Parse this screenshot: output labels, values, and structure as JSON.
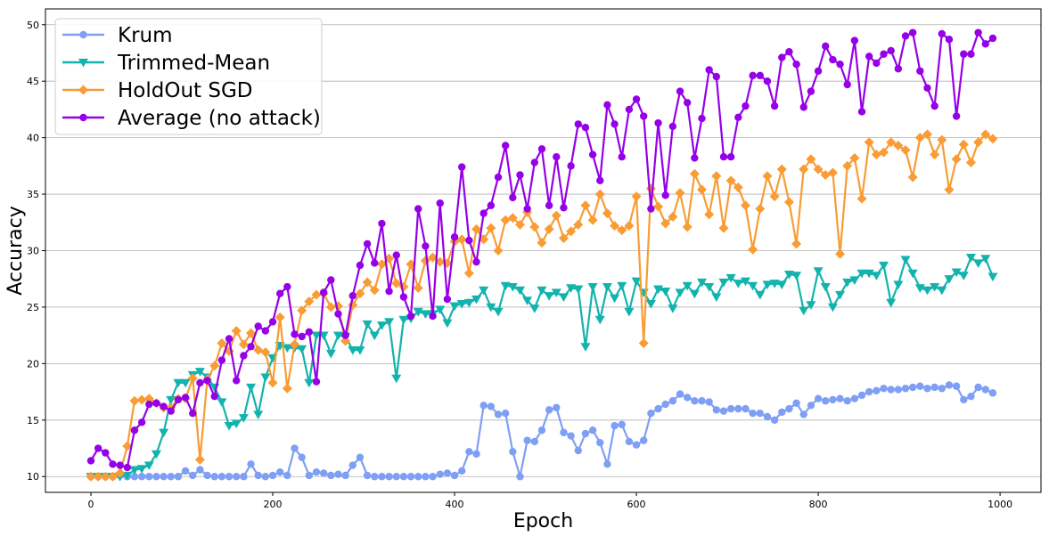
{
  "chart_data": {
    "type": "line",
    "title": "",
    "xlabel": "Epoch",
    "ylabel": "Accuracy",
    "xlim": [
      -50,
      1045
    ],
    "ylim": [
      8.6,
      51.4
    ],
    "xticks": [
      0,
      200,
      400,
      600,
      800,
      1000
    ],
    "yticks": [
      10,
      15,
      20,
      25,
      30,
      35,
      40,
      45,
      50
    ],
    "grid": "horizontal",
    "legend_position": "top-left",
    "x": [
      0,
      8,
      16,
      24,
      32,
      40,
      48,
      56,
      64,
      72,
      80,
      88,
      96,
      104,
      112,
      120,
      128,
      136,
      144,
      152,
      160,
      168,
      176,
      184,
      192,
      200,
      208,
      216,
      224,
      232,
      240,
      248,
      256,
      264,
      272,
      280,
      288,
      296,
      304,
      312,
      320,
      328,
      336,
      344,
      352,
      360,
      368,
      376,
      384,
      392,
      400,
      408,
      416,
      424,
      432,
      440,
      448,
      456,
      464,
      472,
      480,
      488,
      496,
      504,
      512,
      520,
      528,
      536,
      544,
      552,
      560,
      568,
      576,
      584,
      592,
      600,
      608,
      616,
      624,
      632,
      640,
      648,
      656,
      664,
      672,
      680,
      688,
      696,
      704,
      712,
      720,
      728,
      736,
      744,
      752,
      760,
      768,
      776,
      784,
      792,
      800,
      808,
      816,
      824,
      832,
      840,
      848,
      856,
      864,
      872,
      880,
      888,
      896,
      904,
      912,
      920,
      928,
      936,
      944,
      952,
      960,
      968,
      976,
      984,
      992
    ],
    "series": [
      {
        "name": "Krum",
        "color": "#7f9ff5",
        "marker": "circle",
        "values": [
          10.0,
          10.0,
          10.0,
          10.0,
          10.1,
          10.0,
          10.0,
          10.0,
          10.0,
          10.0,
          10.0,
          10.0,
          10.0,
          10.5,
          10.1,
          10.6,
          10.1,
          10.0,
          10.0,
          10.0,
          10.0,
          10.0,
          11.1,
          10.1,
          10.0,
          10.1,
          10.4,
          10.1,
          12.5,
          11.7,
          10.1,
          10.4,
          10.3,
          10.1,
          10.2,
          10.1,
          11.0,
          11.7,
          10.1,
          10.0,
          10.0,
          10.0,
          10.0,
          10.0,
          10.0,
          10.0,
          10.0,
          10.0,
          10.2,
          10.3,
          10.1,
          10.5,
          12.2,
          12.0,
          16.3,
          16.2,
          15.5,
          15.6,
          12.2,
          10.0,
          13.2,
          13.1,
          14.1,
          15.9,
          16.1,
          13.9,
          13.6,
          12.3,
          13.8,
          14.1,
          13.0,
          11.1,
          14.5,
          14.6,
          13.1,
          12.8,
          13.2,
          15.6,
          16.0,
          16.4,
          16.7,
          17.3,
          17.0,
          16.7,
          16.7,
          16.6,
          15.9,
          15.8,
          16.0,
          16.0,
          16.0,
          15.6,
          15.6,
          15.3,
          15.0,
          15.7,
          16.0,
          16.5,
          15.5,
          16.3,
          16.9,
          16.7,
          16.8,
          16.9,
          16.7,
          16.9,
          17.2,
          17.5,
          17.6,
          17.8,
          17.7,
          17.7,
          17.8,
          17.9,
          18.0,
          17.8,
          17.9,
          17.8,
          18.1,
          18.0,
          16.8,
          17.1,
          17.9,
          17.7,
          17.4
        ]
      },
      {
        "name": "Trimmed-Mean",
        "color": "#13b3ad",
        "marker": "triangle-down",
        "values": [
          10.0,
          10.0,
          10.0,
          10.0,
          10.0,
          10.1,
          10.6,
          10.7,
          11.0,
          12.0,
          13.9,
          16.8,
          18.3,
          18.3,
          19.0,
          19.3,
          18.8,
          17.9,
          16.6,
          14.5,
          14.7,
          15.2,
          17.9,
          15.5,
          18.8,
          20.5,
          21.6,
          21.4,
          21.4,
          21.3,
          18.3,
          22.5,
          22.5,
          20.9,
          22.5,
          22.4,
          21.2,
          21.2,
          23.5,
          22.5,
          23.4,
          23.7,
          18.7,
          23.9,
          24.0,
          24.6,
          24.4,
          24.4,
          24.8,
          23.6,
          25.1,
          25.3,
          25.4,
          25.7,
          26.5,
          25.0,
          24.6,
          26.9,
          26.8,
          26.5,
          25.6,
          24.9,
          26.5,
          26.0,
          26.3,
          25.9,
          26.7,
          26.6,
          21.5,
          26.8,
          23.9,
          26.8,
          25.8,
          26.9,
          24.6,
          27.3,
          26.3,
          25.3,
          26.6,
          26.4,
          24.9,
          26.3,
          26.9,
          26.2,
          27.2,
          26.8,
          25.9,
          27.2,
          27.6,
          27.1,
          27.3,
          26.9,
          26.1,
          27.0,
          27.1,
          27.0,
          27.9,
          27.8,
          24.7,
          25.2,
          28.2,
          26.8,
          25.0,
          26.1,
          27.2,
          27.4,
          28.0,
          28.0,
          27.8,
          28.7,
          25.4,
          27.0,
          29.2,
          28.0,
          26.7,
          26.5,
          26.8,
          26.5,
          27.5,
          28.1,
          27.8,
          29.4,
          28.9,
          29.3,
          27.7
        ]
      },
      {
        "name": "HoldOut SGD",
        "color": "#f99c35",
        "marker": "diamond",
        "values": [
          10.0,
          10.0,
          10.0,
          10.0,
          10.3,
          12.7,
          16.7,
          16.8,
          16.9,
          16.5,
          16.1,
          16.1,
          16.9,
          16.9,
          18.7,
          11.5,
          18.6,
          19.8,
          21.8,
          21.1,
          22.9,
          21.7,
          22.7,
          21.2,
          21.0,
          18.3,
          24.1,
          17.8,
          21.7,
          24.7,
          25.5,
          26.1,
          26.2,
          25.0,
          25.1,
          22.0,
          25.2,
          26.2,
          27.2,
          26.5,
          28.8,
          29.3,
          27.1,
          26.8,
          28.8,
          26.7,
          29.1,
          29.4,
          29.0,
          28.9,
          30.8,
          31.0,
          28.0,
          31.9,
          31.0,
          32.0,
          30.0,
          32.7,
          32.9,
          32.3,
          33.4,
          32.1,
          30.7,
          31.9,
          33.1,
          31.1,
          31.7,
          32.3,
          34.0,
          32.7,
          35.0,
          33.3,
          32.2,
          31.8,
          32.2,
          34.8,
          21.8,
          35.5,
          33.9,
          32.4,
          33.0,
          35.1,
          32.1,
          36.8,
          35.4,
          33.2,
          36.6,
          32.0,
          36.2,
          35.6,
          34.0,
          30.1,
          33.7,
          36.6,
          34.8,
          37.2,
          34.3,
          30.6,
          37.2,
          38.1,
          37.2,
          36.7,
          36.9,
          29.7,
          37.5,
          38.2,
          34.6,
          39.6,
          38.5,
          38.7,
          39.6,
          39.3,
          38.9,
          36.5,
          40.0,
          40.3,
          38.5,
          39.8,
          35.4,
          38.1,
          39.4,
          37.8,
          39.6,
          40.3,
          39.9
        ]
      },
      {
        "name": "Average (no attack)",
        "color": "#9600e8",
        "marker": "circle",
        "values": [
          11.4,
          12.5,
          12.1,
          11.1,
          11.0,
          10.8,
          14.1,
          14.8,
          16.4,
          16.5,
          16.2,
          15.8,
          16.8,
          17.0,
          15.6,
          18.3,
          18.5,
          17.1,
          20.3,
          22.2,
          18.5,
          20.7,
          21.5,
          23.3,
          22.9,
          23.7,
          26.2,
          26.8,
          22.6,
          22.4,
          22.8,
          18.4,
          26.3,
          27.4,
          24.4,
          22.5,
          26.0,
          28.7,
          30.6,
          28.9,
          32.4,
          26.4,
          29.6,
          25.9,
          24.2,
          33.7,
          30.4,
          24.2,
          34.2,
          25.7,
          31.2,
          37.4,
          30.9,
          29.0,
          33.3,
          34.0,
          36.5,
          39.3,
          34.7,
          36.7,
          33.7,
          37.8,
          39.0,
          34.0,
          38.3,
          33.8,
          37.5,
          41.2,
          40.9,
          38.5,
          36.2,
          42.9,
          41.2,
          38.3,
          42.5,
          43.4,
          41.9,
          33.7,
          41.3,
          34.9,
          41.0,
          44.1,
          43.1,
          38.2,
          41.7,
          46.0,
          45.4,
          38.3,
          38.3,
          41.8,
          42.8,
          45.5,
          45.5,
          45.0,
          42.8,
          47.1,
          47.6,
          46.5,
          42.7,
          44.1,
          45.9,
          48.1,
          46.9,
          46.5,
          44.7,
          48.6,
          42.3,
          47.2,
          46.6,
          47.4,
          47.7,
          46.1,
          49.0,
          49.3,
          45.9,
          44.4,
          42.8,
          49.2,
          48.7,
          41.9,
          47.4,
          47.4,
          49.3,
          48.3,
          48.8
        ]
      }
    ]
  }
}
